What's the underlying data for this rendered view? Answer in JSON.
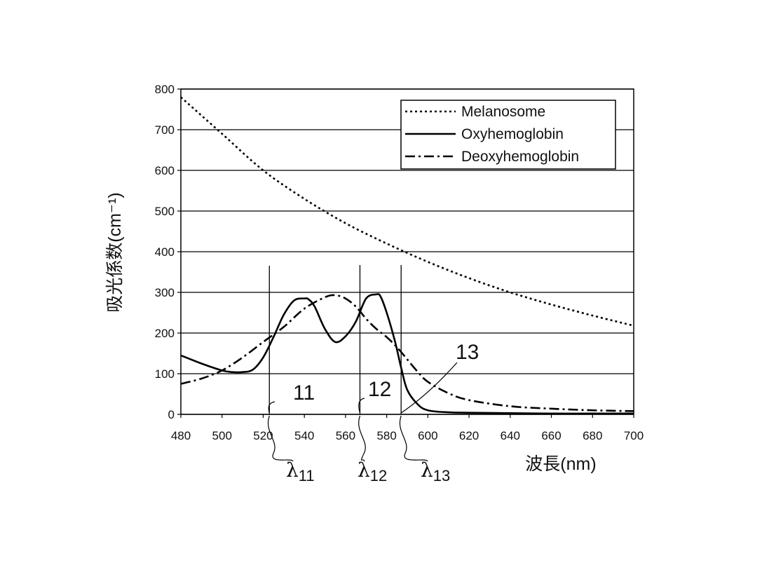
{
  "chart_data": {
    "type": "line",
    "xlabel": "波長(nm)",
    "ylabel": "吸光係数(cm⁻¹)",
    "xlim": [
      480,
      700
    ],
    "ylim": [
      0,
      800
    ],
    "x_ticks": [
      480,
      500,
      520,
      540,
      560,
      580,
      600,
      620,
      640,
      660,
      680,
      700
    ],
    "y_ticks": [
      0,
      100,
      200,
      300,
      400,
      500,
      600,
      700,
      800
    ],
    "grid": "horizontal",
    "legend_position": "top-right",
    "series": [
      {
        "name": "Melanosome",
        "style": "dotted",
        "x": [
          480,
          500,
          520,
          540,
          560,
          580,
          600,
          620,
          640,
          660,
          680,
          700
        ],
        "y": [
          780,
          690,
          600,
          530,
          470,
          420,
          375,
          335,
          300,
          270,
          243,
          218
        ]
      },
      {
        "name": "Oxyhemoglobin",
        "style": "solid",
        "x": [
          480,
          490,
          500,
          505,
          510,
          515,
          520,
          525,
          530,
          535,
          540,
          542,
          545,
          550,
          555,
          560,
          565,
          570,
          575,
          577,
          580,
          584,
          587,
          590,
          595,
          600,
          610,
          620,
          640,
          660,
          680,
          700
        ],
        "y": [
          145,
          125,
          108,
          104,
          104,
          110,
          140,
          190,
          245,
          280,
          285,
          283,
          265,
          210,
          178,
          192,
          228,
          285,
          295,
          290,
          250,
          180,
          115,
          60,
          25,
          10,
          5,
          4,
          3,
          2,
          2,
          2
        ]
      },
      {
        "name": "Deoxyhemoglobin",
        "style": "dash-dot",
        "x": [
          480,
          490,
          500,
          510,
          520,
          530,
          540,
          550,
          555,
          560,
          565,
          570,
          575,
          580,
          585,
          590,
          595,
          600,
          610,
          620,
          640,
          660,
          680,
          700
        ],
        "y": [
          75,
          88,
          108,
          140,
          178,
          215,
          260,
          288,
          293,
          285,
          265,
          235,
          210,
          190,
          165,
          135,
          105,
          80,
          52,
          35,
          20,
          14,
          10,
          8
        ]
      }
    ],
    "markers": [
      {
        "x": 523,
        "label": "11",
        "lambda": "λ",
        "lambda_sub": "11"
      },
      {
        "x": 567,
        "label": "12",
        "lambda": "λ",
        "lambda_sub": "12"
      },
      {
        "x": 587,
        "label": "13",
        "lambda": "λ",
        "lambda_sub": "13"
      }
    ]
  }
}
